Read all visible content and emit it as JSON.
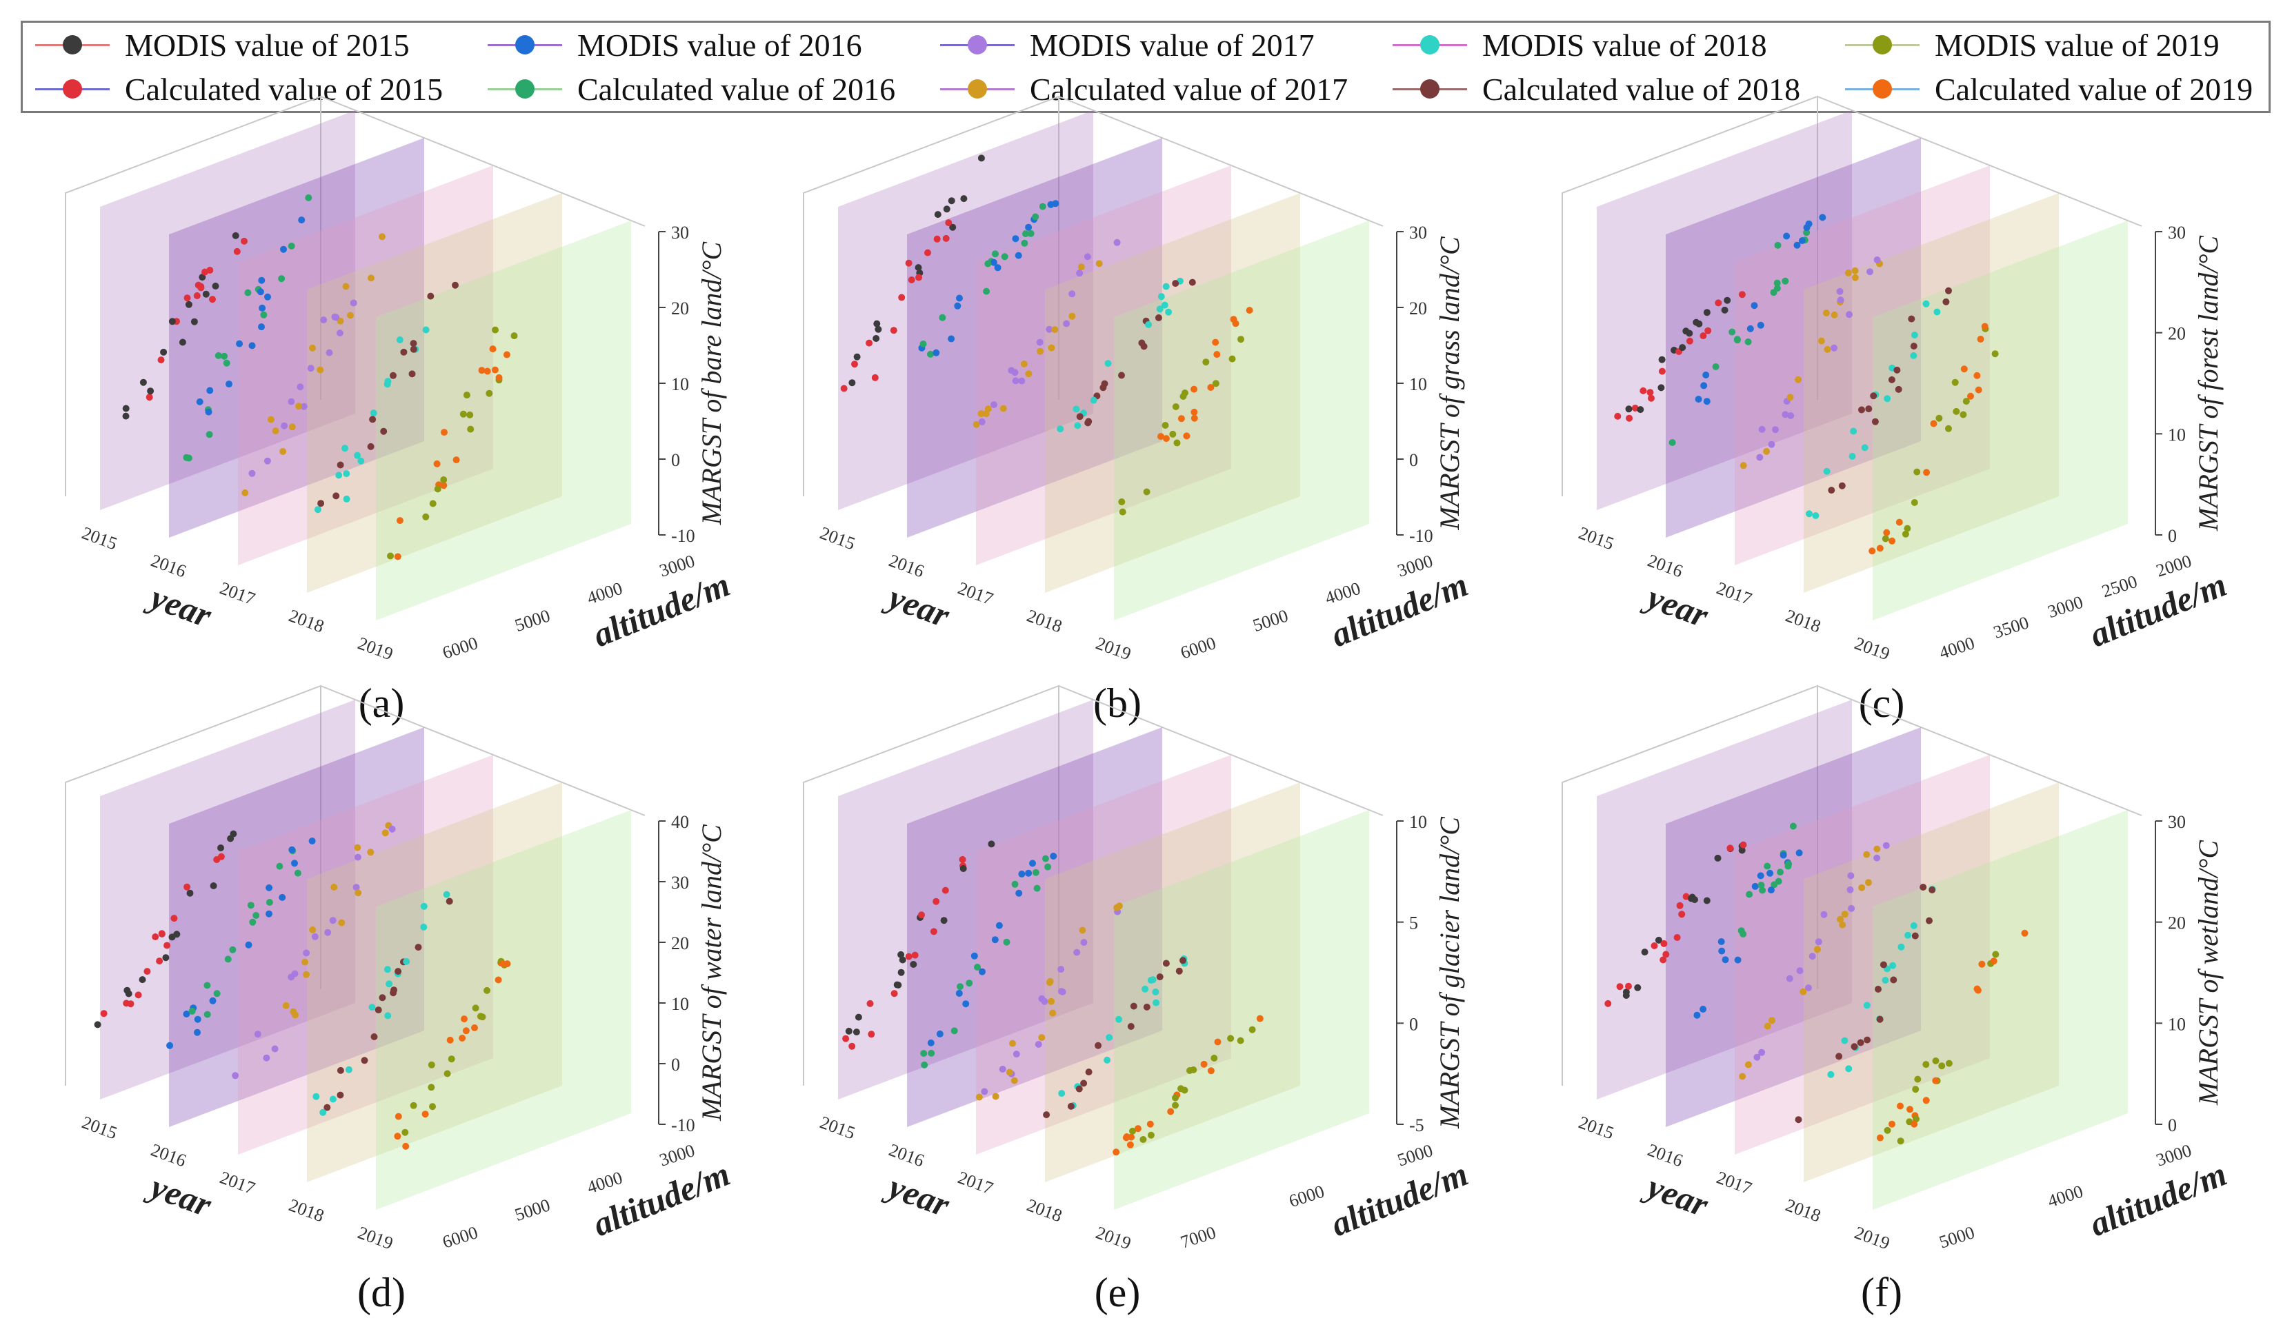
{
  "legend": {
    "items": [
      {
        "label": "MODIS value of 2015",
        "dot": "#3b3b3b",
        "line": "#e07a7a"
      },
      {
        "label": "MODIS value of 2016",
        "dot": "#1f6fd6",
        "line": "#9a6fd0"
      },
      {
        "label": "MODIS value of 2017",
        "dot": "#a77ae0",
        "line": "#7a6acc"
      },
      {
        "label": "MODIS value of 2018",
        "dot": "#2fd3c6",
        "line": "#d070c8"
      },
      {
        "label": "MODIS value of 2019",
        "dot": "#8a9a12",
        "line": "#c0c8a0"
      },
      {
        "label": "Calculated value of 2015",
        "dot": "#e0303a",
        "line": "#6a6ad0"
      },
      {
        "label": "Calculated value of 2016",
        "dot": "#2aa86a",
        "line": "#9acf9a"
      },
      {
        "label": "Calculated value of 2017",
        "dot": "#d39a22",
        "line": "#b07ad0"
      },
      {
        "label": "Calculated value of 2018",
        "dot": "#7a3a3a",
        "line": "#9a6a6a"
      },
      {
        "label": "Calculated value of 2019",
        "dot": "#f06a12",
        "line": "#7ab0e0"
      }
    ]
  },
  "axis_titles": {
    "year": "year",
    "altitude": "altitude/m"
  },
  "chart_data": [
    {
      "panel": "(a)",
      "type": "scatter",
      "zlabel": "MARGST of bare land/°C",
      "zticks": [
        "30",
        "20",
        "10",
        "0",
        "-10"
      ],
      "zlim": [
        -10,
        30
      ],
      "years": [
        "2015",
        "2016",
        "2017",
        "2018",
        "2019"
      ],
      "altitude_ticks": [
        "3000",
        "4000",
        "5000",
        "6000"
      ],
      "series": [
        {
          "year": "2015",
          "z_range": [
            -5,
            20
          ]
        },
        {
          "year": "2016",
          "z_range": [
            -6,
            28
          ]
        },
        {
          "year": "2017",
          "z_range": [
            -6,
            27
          ]
        },
        {
          "year": "2018",
          "z_range": [
            -7,
            25
          ]
        },
        {
          "year": "2019",
          "z_range": [
            -8,
            23
          ]
        }
      ]
    },
    {
      "panel": "(b)",
      "type": "scatter",
      "zlabel": "MARGST of grass land/°C",
      "zticks": [
        "30",
        "20",
        "10",
        "0",
        "-10"
      ],
      "zlim": [
        -10,
        30
      ],
      "years": [
        "2015",
        "2016",
        "2017",
        "2018",
        "2019"
      ],
      "altitude_ticks": [
        "3000",
        "4000",
        "5000",
        "6000"
      ],
      "series": [
        {
          "year": "2015",
          "z_range": [
            0,
            30
          ]
        },
        {
          "year": "2016",
          "z_range": [
            10,
            27
          ]
        },
        {
          "year": "2017",
          "z_range": [
            5,
            27
          ]
        },
        {
          "year": "2018",
          "z_range": [
            5,
            25
          ]
        },
        {
          "year": "2019",
          "z_range": [
            0,
            25
          ]
        }
      ]
    },
    {
      "panel": "(c)",
      "type": "scatter",
      "zlabel": "MARGST of forest land/°C",
      "zticks": [
        "30",
        "20",
        "10",
        "0"
      ],
      "zlim": [
        0,
        30
      ],
      "years": [
        "2015",
        "2016",
        "2017",
        "2018",
        "2019"
      ],
      "altitude_ticks": [
        "2000",
        "2500",
        "3000",
        "3500",
        "4000"
      ],
      "series": [
        {
          "year": "2015",
          "z_range": [
            5,
            17
          ]
        },
        {
          "year": "2016",
          "z_range": [
            6,
            26
          ]
        },
        {
          "year": "2017",
          "z_range": [
            5,
            26
          ]
        },
        {
          "year": "2018",
          "z_range": [
            4,
            25
          ]
        },
        {
          "year": "2019",
          "z_range": [
            3,
            27
          ]
        }
      ]
    },
    {
      "panel": "(d)",
      "type": "scatter",
      "zlabel": "MARGST of water land/°C",
      "zticks": [
        "40",
        "30",
        "20",
        "10",
        "0",
        "-10"
      ],
      "zlim": [
        -10,
        40
      ],
      "years": [
        "2015",
        "2016",
        "2017",
        "2018",
        "2019"
      ],
      "altitude_ticks": [
        "3000",
        "4000",
        "5000",
        "6000"
      ],
      "series": [
        {
          "year": "2015",
          "z_range": [
            -2,
            26
          ]
        },
        {
          "year": "2016",
          "z_range": [
            -2,
            30
          ]
        },
        {
          "year": "2017",
          "z_range": [
            -3,
            35
          ]
        },
        {
          "year": "2018",
          "z_range": [
            -5,
            30
          ]
        },
        {
          "year": "2019",
          "z_range": [
            -7,
            25
          ]
        }
      ]
    },
    {
      "panel": "(e)",
      "type": "scatter",
      "zlabel": "MARGST of glacier land/°C",
      "zticks": [
        "10",
        "5",
        "0",
        "-5"
      ],
      "zlim": [
        -5,
        10
      ],
      "years": [
        "2015",
        "2016",
        "2017",
        "2018",
        "2019"
      ],
      "altitude_ticks": [
        "5000",
        "6000",
        "7000"
      ],
      "series": [
        {
          "year": "2015",
          "z_range": [
            -4,
            5
          ]
        },
        {
          "year": "2016",
          "z_range": [
            -4,
            6
          ]
        },
        {
          "year": "2017",
          "z_range": [
            -4,
            5
          ]
        },
        {
          "year": "2018",
          "z_range": [
            -3,
            4
          ]
        },
        {
          "year": "2019",
          "z_range": [
            -3,
            2
          ]
        }
      ]
    },
    {
      "panel": "(f)",
      "type": "scatter",
      "zlabel": "MARGST of wetland/°C",
      "zticks": [
        "30",
        "20",
        "10",
        "0"
      ],
      "zlim": [
        0,
        30
      ],
      "years": [
        "2015",
        "2016",
        "2017",
        "2018",
        "2019"
      ],
      "altitude_ticks": [
        "3000",
        "4000",
        "5000"
      ],
      "series": [
        {
          "year": "2015",
          "z_range": [
            6,
            20
          ]
        },
        {
          "year": "2016",
          "z_range": [
            5,
            25
          ]
        },
        {
          "year": "2017",
          "z_range": [
            4,
            25
          ]
        },
        {
          "year": "2018",
          "z_range": [
            3,
            25
          ]
        },
        {
          "year": "2019",
          "z_range": [
            2,
            22
          ]
        }
      ]
    }
  ]
}
